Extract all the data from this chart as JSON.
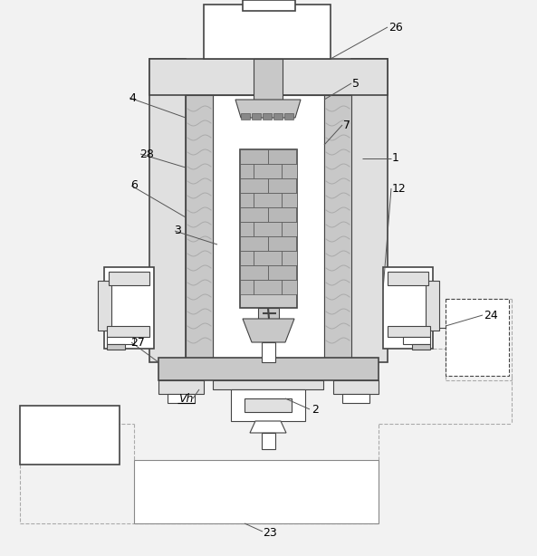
{
  "bg_color": "#f2f2f2",
  "lc": "#444444",
  "lc_thin": "#666666",
  "white": "#ffffff",
  "light_gray": "#e0e0e0",
  "mid_gray": "#c8c8c8",
  "dark_gray": "#888888",
  "dash_color": "#aaaaaa"
}
